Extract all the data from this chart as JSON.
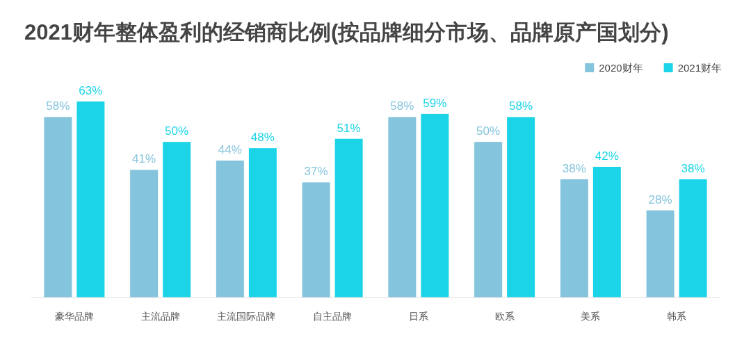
{
  "chart_data": {
    "type": "bar",
    "title": "2021财年整体盈利的经销商比例(按品牌细分市场、品牌原产国划分)",
    "categories": [
      "豪华品牌",
      "主流品牌",
      "主流国际品牌",
      "自主品牌",
      "日系",
      "欧系",
      "美系",
      "韩系"
    ],
    "series": [
      {
        "name": "2020财年",
        "color": "#84c4dc",
        "values": [
          58,
          41,
          44,
          37,
          58,
          50,
          38,
          28
        ],
        "value_labels": [
          "58%",
          "41%",
          "44%",
          "37%",
          "58%",
          "50%",
          "38%",
          "28%"
        ]
      },
      {
        "name": "2021财年",
        "color": "#1cd4e8",
        "values": [
          63,
          50,
          48,
          51,
          59,
          58,
          42,
          38
        ],
        "value_labels": [
          "63%",
          "50%",
          "48%",
          "51%",
          "59%",
          "58%",
          "42%",
          "38%"
        ]
      }
    ],
    "legend": "top right",
    "grid": false
  }
}
